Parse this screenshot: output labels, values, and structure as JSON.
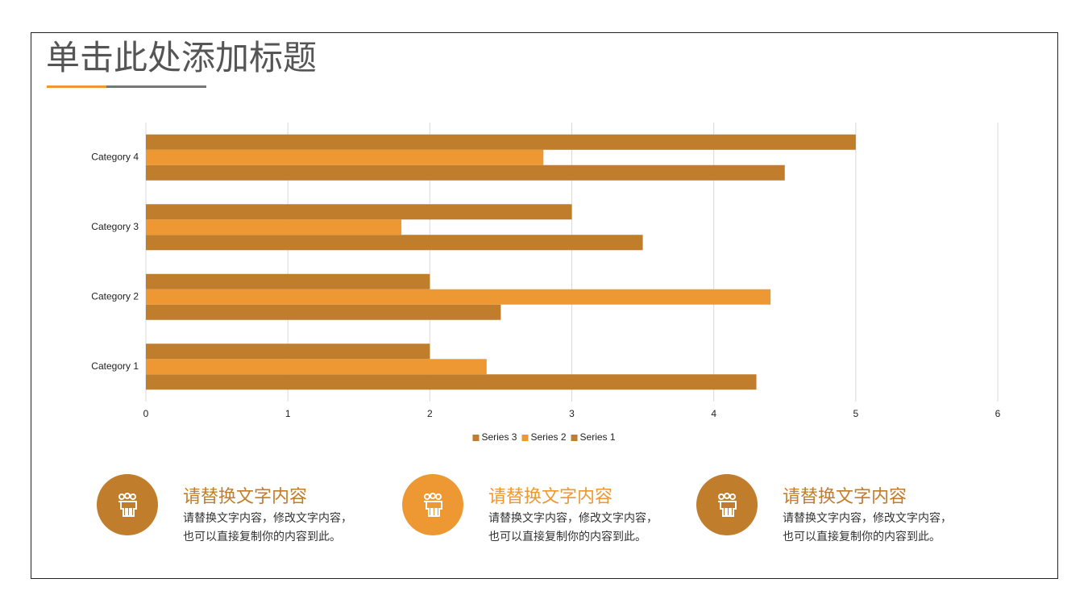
{
  "title": "单击此处添加标题",
  "chart_data": {
    "type": "barh",
    "categories": [
      "Category 1",
      "Category 2",
      "Category 3",
      "Category 4"
    ],
    "series": [
      {
        "name": "Series 1",
        "color": "#c07d2c",
        "values": [
          4.3,
          2.5,
          3.5,
          4.5
        ]
      },
      {
        "name": "Series 2",
        "color": "#ed9832",
        "values": [
          2.4,
          4.4,
          1.8,
          2.8
        ]
      },
      {
        "name": "Series 3",
        "color": "#c07d2c",
        "values": [
          2,
          2,
          3,
          5
        ]
      }
    ],
    "xlim": [
      0,
      6
    ],
    "xticks": [
      0,
      1,
      2,
      3,
      4,
      5,
      6
    ],
    "grid": true,
    "legend": "bottom"
  },
  "features": [
    {
      "heading": "请替换文字内容",
      "color": "#c07d2c",
      "lines": [
        "请替换文字内容，修改文字内容，",
        "也可以直接复制你的内容到此。"
      ]
    },
    {
      "heading": "请替换文字内容",
      "color": "#ed9832",
      "lines": [
        "请替换文字内容，修改文字内容，",
        "也可以直接复制你的内容到此。"
      ]
    },
    {
      "heading": "请替换文字内容",
      "color": "#c07d2c",
      "lines": [
        "请替换文字内容，修改文字内容，",
        "也可以直接复制你的内容到此。"
      ]
    }
  ]
}
